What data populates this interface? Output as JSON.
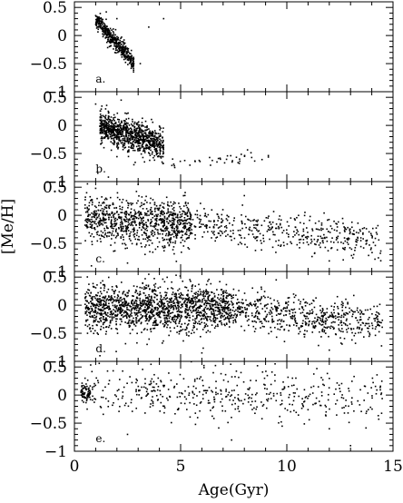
{
  "chart_data": {
    "type": "scatter",
    "xlabel": "Age(Gyr)",
    "ylabel": "[Me/H]",
    "xlim": [
      0,
      15
    ],
    "ylim": [
      -1,
      0.6
    ],
    "xticks": [
      0,
      5,
      10,
      15
    ],
    "x_tick_labels": [
      "0",
      "5",
      "10",
      "15"
    ],
    "yticks": [
      0.5,
      0,
      -0.5,
      -1
    ],
    "y_tick_labels": [
      "0.5",
      "0",
      "−0.5",
      "−1"
    ],
    "marker_color": "#000000",
    "panels": [
      {
        "label": "a.",
        "clusters": [
          {
            "x_range": [
              1.0,
              2.8
            ],
            "y_start": 0.28,
            "y_slope": -0.42,
            "y_spread": 0.08,
            "count": 420
          }
        ],
        "extra_points": [
          [
            1.5,
            0.42
          ],
          [
            2.0,
            0.3
          ],
          [
            3.1,
            -0.5
          ],
          [
            3.5,
            0.15
          ],
          [
            4.2,
            0.3
          ]
        ]
      },
      {
        "label": "b.",
        "clusters": [
          {
            "x_range": [
              1.2,
              4.2
            ],
            "y_start": 0.0,
            "y_slope": -0.12,
            "y_spread": 0.14,
            "count": 900
          },
          {
            "x_range": [
              4.2,
              9.2
            ],
            "y_start": -0.72,
            "y_slope": 0.035,
            "y_spread": 0.05,
            "count": 40
          }
        ],
        "extra_points": [
          [
            1.0,
            0.38
          ],
          [
            1.1,
            -0.85
          ],
          [
            1.6,
            -0.92
          ],
          [
            2.2,
            0.45
          ],
          [
            2.8,
            -0.7
          ],
          [
            3.3,
            -0.65
          ]
        ]
      },
      {
        "label": "c.",
        "clusters": [
          {
            "x_range": [
              0.5,
              5.5
            ],
            "y_start": -0.05,
            "y_slope": -0.02,
            "y_spread": 0.2,
            "count": 900
          },
          {
            "x_range": [
              5.5,
              14.5
            ],
            "y_start": -0.15,
            "y_slope": -0.035,
            "y_spread": 0.16,
            "count": 420
          }
        ],
        "extra_points": [
          [
            1.0,
            0.48
          ],
          [
            2.5,
            -0.85
          ],
          [
            3.0,
            0.55
          ],
          [
            4.8,
            -0.82
          ],
          [
            8.0,
            0.35
          ],
          [
            0.8,
            -0.9
          ]
        ]
      },
      {
        "label": "d.",
        "clusters": [
          {
            "x_range": [
              0.5,
              7.5
            ],
            "y_start": -0.05,
            "y_slope": 0.0,
            "y_spread": 0.2,
            "count": 1500
          },
          {
            "x_range": [
              7.5,
              14.5
            ],
            "y_start": -0.1,
            "y_slope": -0.03,
            "y_spread": 0.17,
            "count": 550
          }
        ],
        "extra_points": [
          [
            1.2,
            -0.9
          ],
          [
            3.5,
            0.55
          ],
          [
            6.0,
            -0.85
          ],
          [
            9.5,
            0.45
          ],
          [
            12.0,
            -0.8
          ]
        ]
      },
      {
        "label": "e.",
        "clusters": [
          {
            "x_range": [
              0.3,
              0.75
            ],
            "y_start": 0.05,
            "y_slope": 0.0,
            "y_spread": 0.08,
            "count": 80
          },
          {
            "x_range": [
              0.7,
              14.5
            ],
            "y_start": 0.05,
            "y_slope": -0.005,
            "y_spread": 0.22,
            "count": 460
          }
        ],
        "extra_points": [
          [
            0.5,
            0.3
          ],
          [
            0.6,
            -0.25
          ],
          [
            2.5,
            -0.7
          ],
          [
            7.4,
            -0.8
          ],
          [
            12.0,
            -0.6
          ],
          [
            13.0,
            -0.9
          ]
        ]
      }
    ]
  }
}
